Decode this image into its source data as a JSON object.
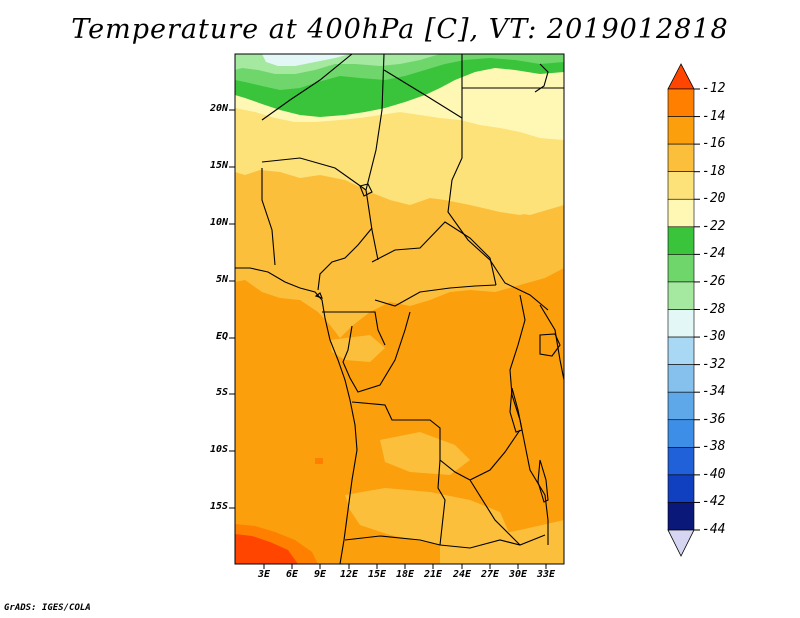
{
  "title": "Temperature at 400hPa [C], VT: 2019012818",
  "credit": "GrADS: IGES/COLA",
  "lat_labels": [
    "20N",
    "15N",
    "10N",
    "5N",
    "EQ",
    "5S",
    "10S",
    "15S"
  ],
  "lon_labels": [
    "3E",
    "6E",
    "9E",
    "12E",
    "15E",
    "18E",
    "21E",
    "24E",
    "27E",
    "30E",
    "33E"
  ],
  "colorbar": {
    "levels": [
      "-12",
      "-14",
      "-16",
      "-18",
      "-20",
      "-22",
      "-24",
      "-26",
      "-28",
      "-30",
      "-32",
      "-34",
      "-36",
      "-38",
      "-40",
      "-42",
      "-44"
    ],
    "colors": [
      "#ff4500",
      "#ff7f00",
      "#fb9f0d",
      "#fcbf3c",
      "#fde27a",
      "#fff8b5",
      "#39c43c",
      "#6ed66a",
      "#a5e8a0",
      "#e4f7f7",
      "#a8d8f4",
      "#86c1ee",
      "#5ea8ea",
      "#3d8ee6",
      "#2060d8",
      "#1040c0",
      "#0a187a",
      "#d6d6f2"
    ]
  }
}
